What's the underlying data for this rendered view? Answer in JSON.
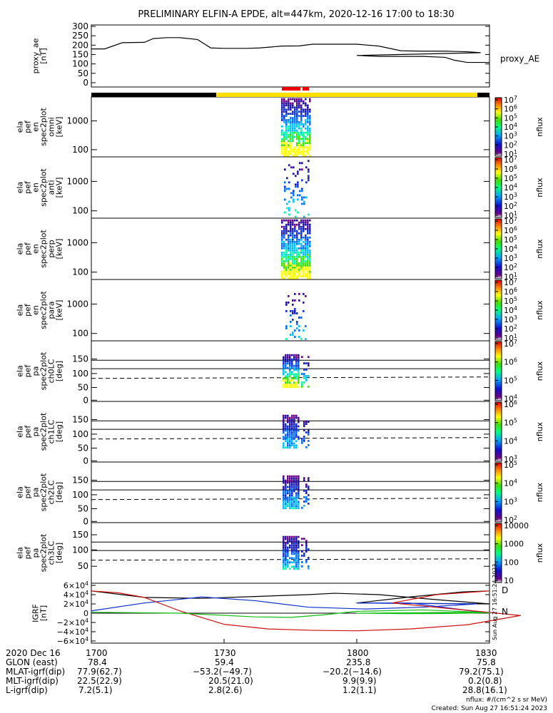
{
  "title": "PRELIMINARY ELFIN-A EPDE, alt=447km, 2020-12-16 17:00 to 18:30",
  "colors": {
    "line": "#000000",
    "bar_black": "#000000",
    "bar_yellow": "#ffe000",
    "bar_red": "#ee0000",
    "igrf_x": "#000000",
    "igrf_y": "#1030d0",
    "igrf_z": "#d01010",
    "igrf_extra": "#10c010"
  },
  "chart_data": [
    {
      "type": "line",
      "panel": "proxy_ae",
      "ylabel": [
        "proxy_ae",
        "[nT]"
      ],
      "legend": "proxy_AE",
      "x": [
        1700,
        1703,
        1707,
        1712,
        1714,
        1717,
        1720,
        1724,
        1727,
        1730,
        1735,
        1738,
        1743,
        1747,
        1750,
        1755,
        1760,
        1765,
        1770,
        1775,
        1780,
        1785,
        1788,
        1800,
        1805,
        1810,
        1815,
        1820,
        1822,
        1825,
        1830
      ],
      "y": [
        180,
        180,
        213,
        215,
        235,
        240,
        240,
        230,
        185,
        183,
        183,
        185,
        195,
        196,
        205,
        205,
        205,
        195,
        170,
        168,
        168,
        165,
        160,
        145,
        140,
        140,
        140,
        135,
        120,
        108,
        108
      ],
      "ylim": [
        0,
        300
      ],
      "ticks": [
        "0",
        "50",
        "100",
        "150",
        "200",
        "250",
        "300"
      ]
    },
    {
      "type": "heatmap",
      "panel": "ela_pef_en_spec2plot_omni",
      "ylabel": [
        "ela",
        "pef",
        "en",
        "spec2plot",
        "omni",
        "[keV]"
      ],
      "ticks": [
        "100",
        "1000"
      ],
      "colorbar": {
        "label": "nflux",
        "ticks": [
          "10<sup>1</sup>",
          "10<sup>2</sup>",
          "10<sup>3</sup>",
          "10<sup>4</sup>",
          "10<sup>5</sup>",
          "10<sup>6</sup>",
          "10<sup>7</sup>"
        ]
      }
    },
    {
      "type": "heatmap",
      "panel": "ela_pef_en_spec2plot_anti",
      "ylabel": [
        "ela",
        "pef",
        "en",
        "spec2plot",
        "anti",
        "[keV]"
      ],
      "ticks": [
        "100",
        "1000"
      ],
      "colorbar": {
        "label": "nflux",
        "ticks": [
          "10<sup>1</sup>",
          "10<sup>2</sup>",
          "10<sup>3</sup>",
          "10<sup>4</sup>",
          "10<sup>5</sup>",
          "10<sup>6</sup>",
          "10<sup>7</sup>"
        ]
      }
    },
    {
      "type": "heatmap",
      "panel": "ela_pef_en_spec2plot_perp",
      "ylabel": [
        "ela",
        "pef",
        "en",
        "spec2plot",
        "perp",
        "[keV]"
      ],
      "ticks": [
        "100",
        "1000"
      ],
      "colorbar": {
        "label": "nflux",
        "ticks": [
          "10<sup>1</sup>",
          "10<sup>2</sup>",
          "10<sup>3</sup>",
          "10<sup>4</sup>",
          "10<sup>5</sup>",
          "10<sup>6</sup>",
          "10<sup>7</sup>"
        ]
      }
    },
    {
      "type": "heatmap",
      "panel": "ela_pef_en_spec2plot_para",
      "ylabel": [
        "ela",
        "pef",
        "en",
        "spec2plot",
        "para",
        "[keV]"
      ],
      "ticks": [
        "100",
        "1000"
      ],
      "colorbar": {
        "label": "nflux",
        "ticks": [
          "10<sup>1</sup>",
          "10<sup>2</sup>",
          "10<sup>3</sup>",
          "10<sup>4</sup>",
          "10<sup>5</sup>",
          "10<sup>6</sup>",
          "10<sup>7</sup>"
        ]
      }
    },
    {
      "type": "heatmap",
      "panel": "ela_pef_pa_spec2plot_ch0LC",
      "ylabel": [
        "ela",
        "pef",
        "pa",
        "spec2plot",
        "ch0LC",
        "[deg]"
      ],
      "ticks": [
        "0",
        "50",
        "100",
        "150"
      ],
      "colorbar": {
        "label": "nflux",
        "ticks": [
          "10<sup>4</sup>",
          "10<sup>5</sup>",
          "10<sup>6</sup>",
          "10<sup>7</sup>"
        ]
      }
    },
    {
      "type": "heatmap",
      "panel": "ela_pef_pa_spec2plot_ch1LC",
      "ylabel": [
        "ela",
        "pef",
        "pa",
        "spec2plot",
        "ch1LC",
        "[deg]"
      ],
      "ticks": [
        "0",
        "50",
        "100",
        "150"
      ],
      "colorbar": {
        "label": "nflux",
        "ticks": [
          "10<sup>3</sup>",
          "10<sup>4</sup>",
          "10<sup>5</sup>",
          "10<sup>6</sup>"
        ]
      }
    },
    {
      "type": "heatmap",
      "panel": "ela_pef_pa_spec2plot_ch2LC",
      "ylabel": [
        "ela",
        "pef",
        "pa",
        "spec2plot",
        "ch2LC",
        "[deg]"
      ],
      "ticks": [
        "0",
        "50",
        "100",
        "150"
      ],
      "colorbar": {
        "label": "nflux",
        "ticks": [
          "10<sup>2</sup>",
          "10<sup>3</sup>",
          "10<sup>4</sup>",
          "10<sup>5</sup>"
        ]
      }
    },
    {
      "type": "heatmap",
      "panel": "ela_pef_pa_spec2plot_ch3LC",
      "ylabel": [
        "ela",
        "pef",
        "pa",
        "spec2plot",
        "ch3LC",
        "[deg]"
      ],
      "ticks": [
        "50",
        "100",
        "150"
      ],
      "colorbar": {
        "label": "nflux",
        "ticks": [
          "10",
          "100",
          "1000",
          "10000"
        ]
      }
    },
    {
      "type": "line",
      "panel": "IGRF",
      "ylabel": [
        "IGRF",
        "[nT]"
      ],
      "ticks": [
        "−6×10<sup>4</sup>",
        "−4×10<sup>4</sup>",
        "−2×10<sup>4</sup>",
        "0",
        "2×10<sup>4</sup>",
        "4×10<sup>4</sup>",
        "6×10<sup>4</sup>"
      ],
      "ylim": [
        -60000,
        60000
      ],
      "legend_letters": [
        "D",
        "N"
      ],
      "timestamp": "Sun Aug 27 16:51:24 2023",
      "series": [
        {
          "color": "#000000",
          "x": [
            1700,
            1712,
            1725,
            1737,
            1749,
            1755,
            1765,
            1777,
            1790,
            1800,
            1812,
            1824,
            1830
          ],
          "y": [
            48000,
            34000,
            32000,
            36000,
            40000,
            43000,
            40000,
            30000,
            20000,
            22000,
            35000,
            46000,
            48000
          ]
        },
        {
          "color": "#1030d0",
          "x": [
            1700,
            1712,
            1725,
            1737,
            1749,
            1762,
            1775,
            1787,
            1800,
            1812,
            1830
          ],
          "y": [
            5000,
            22000,
            35000,
            27000,
            13000,
            9000,
            13000,
            20000,
            22000,
            22000,
            0
          ]
        },
        {
          "color": "#d01010",
          "x": [
            1700,
            1706,
            1712,
            1720,
            1730,
            1740,
            1750,
            1760,
            1772,
            1785,
            1797,
            1808,
            1818,
            1830
          ],
          "y": [
            48000,
            44000,
            34000,
            5000,
            -24000,
            -34000,
            -37000,
            -38000,
            -34000,
            -25000,
            -5000,
            22000,
            40000,
            48000
          ]
        },
        {
          "color": "#10c010",
          "x": [
            1700,
            1720,
            1737,
            1745,
            1752,
            1760,
            1775,
            1788,
            1800,
            1810,
            1820,
            1830
          ],
          "y": [
            2000,
            0,
            -8000,
            -9000,
            -4000,
            4000,
            7000,
            2000,
            0,
            -1000,
            -800,
            1000
          ]
        }
      ]
    }
  ],
  "x_axis": {
    "ticks": [
      "1700",
      "1730",
      "1800",
      "1830"
    ]
  },
  "footer": {
    "rows": [
      {
        "label": "2020 Dec 16",
        "values": [
          "1700",
          "1730",
          "1800",
          "1830"
        ]
      },
      {
        "label": "GLON (east)",
        "values": [
          "78.4",
          "59.4",
          "235.8",
          "75.8"
        ]
      },
      {
        "label": "MLAT-igrf(dip)",
        "values": [
          "77.9(62.7)",
          "−53.2(−49.7)",
          "−20.2(−14.6)",
          "79.2(75.1)"
        ]
      },
      {
        "label": "MLT-igrf(dip)",
        "values": [
          "22.5(22.9)",
          "20.5(21.0)",
          "9.9(9.9)",
          "0.2(0.8)"
        ]
      },
      {
        "label": "L-igrf(dip)",
        "values": [
          "7.2(5.1)",
          "2.8(2.6)",
          "1.2(1.1)",
          "28.8(16.1)"
        ]
      }
    ],
    "nflux_units": "nflux: #/(cm^2 s sr MeV)",
    "created": "Created: Sun Aug 27 16:51:24 2023"
  }
}
